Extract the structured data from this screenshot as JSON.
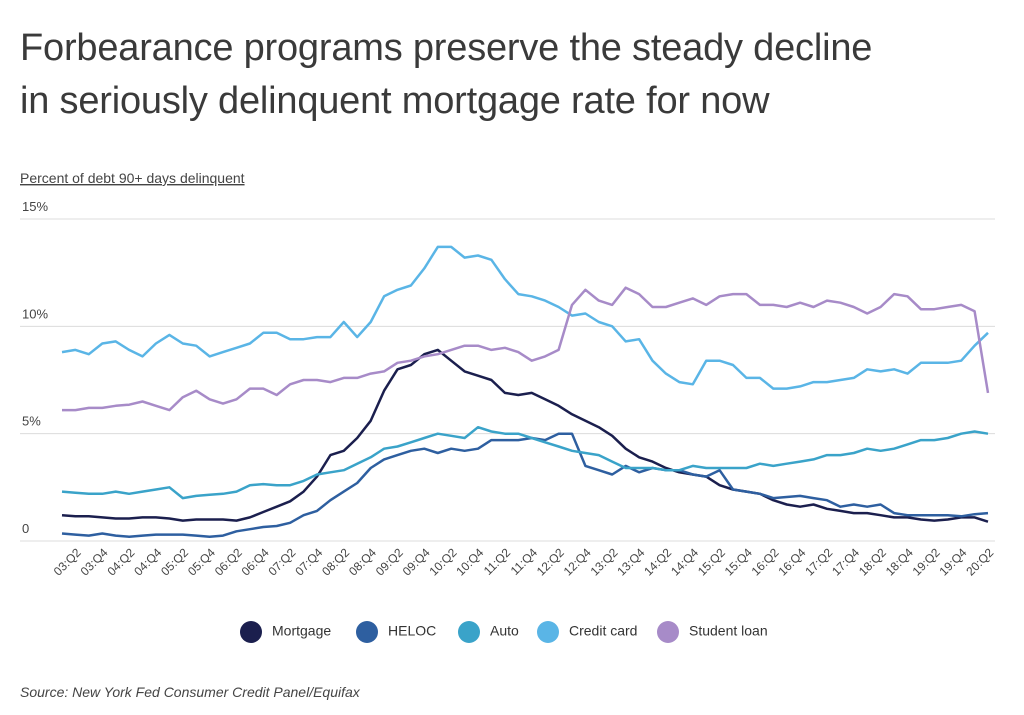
{
  "chart_data": {
    "type": "line",
    "title": "Forbearance programs preserve the steady decline\nin seriously delinquent mortgage rate for now",
    "y_axis_label": "Percent of debt 90+ days delinquent",
    "source": "Source: New York Fed Consumer Credit Panel/Equifax",
    "categories": [
      null,
      "03:Q2",
      null,
      "03:Q4",
      null,
      "04:Q2",
      null,
      "04:Q4",
      null,
      "05:Q2",
      null,
      "05:Q4",
      null,
      "06:Q2",
      null,
      "06:Q4",
      null,
      "07:Q2",
      null,
      "07:Q4",
      null,
      "08:Q2",
      null,
      "08:Q4",
      null,
      "09:Q2",
      null,
      "09:Q4",
      null,
      "10:Q2",
      null,
      "10:Q4",
      null,
      "11:Q2",
      null,
      "11:Q4",
      null,
      "12:Q2",
      null,
      "12:Q4",
      null,
      "13:Q2",
      null,
      "13:Q4",
      null,
      "14:Q2",
      null,
      "14:Q4",
      null,
      "15:Q2",
      null,
      "15:Q4",
      null,
      "16:Q2",
      null,
      "16:Q4",
      null,
      "17:Q2",
      null,
      "17:Q4",
      null,
      "18:Q2",
      null,
      "18:Q4",
      null,
      "19:Q2",
      null,
      "19:Q4",
      null,
      "20:Q2"
    ],
    "ylim": [
      0,
      15
    ],
    "yticks": [
      0,
      {
        "value": 5,
        "label": "5%"
      },
      {
        "value": 10,
        "label": "10%"
      },
      {
        "value": 15,
        "label": "15%"
      }
    ],
    "grid": true,
    "legend": "bottom",
    "series": [
      {
        "name": "Mortgage",
        "color": "#1b1f4e",
        "values": [
          1.2,
          1.15,
          1.15,
          1.1,
          1.05,
          1.05,
          1.1,
          1.1,
          1.05,
          0.95,
          1.0,
          1.0,
          1.0,
          0.95,
          1.1,
          1.35,
          1.6,
          1.85,
          2.3,
          3.0,
          4.0,
          4.2,
          4.8,
          5.6,
          7.0,
          8.0,
          8.2,
          8.7,
          8.9,
          8.4,
          7.9,
          7.7,
          7.5,
          6.9,
          6.8,
          6.9,
          6.6,
          6.3,
          5.9,
          5.6,
          5.3,
          4.9,
          4.3,
          3.9,
          3.7,
          3.4,
          3.2,
          3.1,
          3.0,
          2.6,
          2.4,
          2.3,
          2.2,
          1.9,
          1.7,
          1.6,
          1.7,
          1.5,
          1.4,
          1.3,
          1.3,
          1.2,
          1.1,
          1.1,
          1.0,
          0.95,
          1.0,
          1.1,
          1.1,
          0.9
        ]
      },
      {
        "name": "HELOC",
        "color": "#2e5fa0",
        "values": [
          0.35,
          0.3,
          0.25,
          0.35,
          0.25,
          0.2,
          0.25,
          0.3,
          0.3,
          0.3,
          0.25,
          0.2,
          0.25,
          0.45,
          0.55,
          0.65,
          0.7,
          0.85,
          1.2,
          1.4,
          1.9,
          2.3,
          2.7,
          3.4,
          3.8,
          4.0,
          4.2,
          4.3,
          4.1,
          4.3,
          4.2,
          4.3,
          4.7,
          4.7,
          4.7,
          4.8,
          4.7,
          5.0,
          5.0,
          3.5,
          3.3,
          3.1,
          3.5,
          3.2,
          3.4,
          3.3,
          3.3,
          3.1,
          3.0,
          3.3,
          2.4,
          2.3,
          2.2,
          2.0,
          2.05,
          2.1,
          2.0,
          1.9,
          1.6,
          1.7,
          1.6,
          1.7,
          1.3,
          1.2,
          1.2,
          1.2,
          1.2,
          1.15,
          1.25,
          1.3
        ]
      },
      {
        "name": "Auto",
        "color": "#3aa3c9",
        "values": [
          2.3,
          2.25,
          2.2,
          2.2,
          2.3,
          2.2,
          2.3,
          2.4,
          2.5,
          2.0,
          2.1,
          2.15,
          2.2,
          2.3,
          2.6,
          2.65,
          2.6,
          2.6,
          2.8,
          3.1,
          3.2,
          3.3,
          3.6,
          3.9,
          4.3,
          4.4,
          4.6,
          4.8,
          5.0,
          4.9,
          4.8,
          5.3,
          5.1,
          5.0,
          5.0,
          4.8,
          4.6,
          4.4,
          4.2,
          4.1,
          4.0,
          3.7,
          3.4,
          3.4,
          3.4,
          3.3,
          3.3,
          3.5,
          3.4,
          3.4,
          3.4,
          3.4,
          3.6,
          3.5,
          3.6,
          3.7,
          3.8,
          4.0,
          4.0,
          4.1,
          4.3,
          4.2,
          4.3,
          4.5,
          4.7,
          4.7,
          4.8,
          5.0,
          5.1,
          5.0
        ]
      },
      {
        "name": "Credit card",
        "color": "#5ab5e6",
        "values": [
          8.8,
          8.9,
          8.7,
          9.2,
          9.3,
          8.9,
          8.6,
          9.2,
          9.6,
          9.2,
          9.1,
          8.6,
          8.8,
          9.0,
          9.2,
          9.7,
          9.7,
          9.4,
          9.4,
          9.5,
          9.5,
          10.2,
          9.5,
          10.2,
          11.4,
          11.7,
          11.9,
          12.7,
          13.7,
          13.7,
          13.2,
          13.3,
          13.1,
          12.2,
          11.5,
          11.4,
          11.2,
          10.9,
          10.5,
          10.6,
          10.2,
          10.0,
          9.3,
          9.4,
          8.4,
          7.8,
          7.4,
          7.3,
          8.4,
          8.4,
          8.2,
          7.6,
          7.6,
          7.1,
          7.1,
          7.2,
          7.4,
          7.4,
          7.5,
          7.6,
          8.0,
          7.9,
          8.0,
          7.8,
          8.3,
          8.3,
          8.3,
          8.4,
          9.1,
          9.7
        ]
      },
      {
        "name": "Student loan",
        "color": "#a78bc8",
        "values": [
          6.1,
          6.1,
          6.2,
          6.2,
          6.3,
          6.35,
          6.5,
          6.3,
          6.1,
          6.7,
          7.0,
          6.6,
          6.4,
          6.6,
          7.1,
          7.1,
          6.8,
          7.3,
          7.5,
          7.5,
          7.4,
          7.6,
          7.6,
          7.8,
          7.9,
          8.3,
          8.4,
          8.6,
          8.7,
          8.9,
          9.1,
          9.1,
          8.9,
          9.0,
          8.8,
          8.4,
          8.6,
          8.9,
          11.0,
          11.7,
          11.2,
          11.0,
          11.8,
          11.5,
          10.9,
          10.9,
          11.1,
          11.3,
          11.0,
          11.4,
          11.5,
          11.5,
          11.0,
          11.0,
          10.9,
          11.1,
          10.9,
          11.2,
          11.1,
          10.9,
          10.6,
          10.9,
          11.5,
          11.4,
          10.8,
          10.8,
          10.9,
          11.0,
          10.7,
          6.9
        ]
      }
    ]
  }
}
